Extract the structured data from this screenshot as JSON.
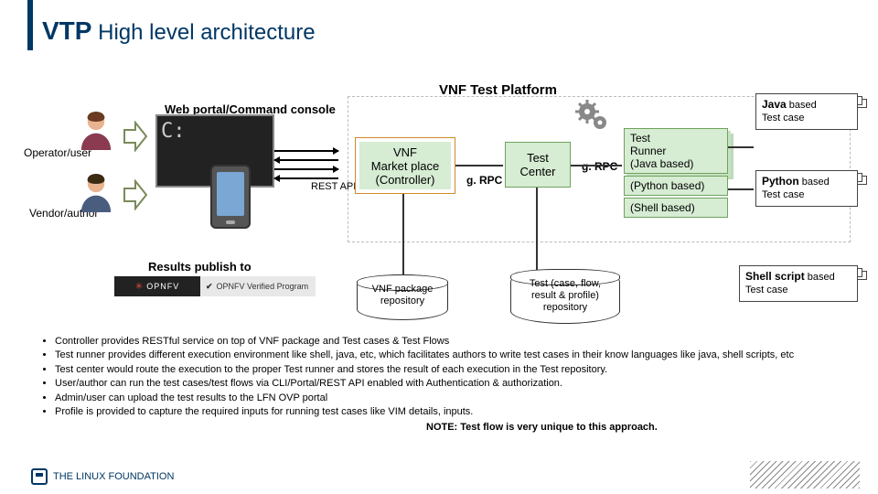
{
  "title": {
    "vtp": "VTP",
    "rest": " High level architecture"
  },
  "labels": {
    "platform": "VNF Test Platform",
    "web_portal": "Web portal/Command console",
    "operator": "Operator/user",
    "vendor": "Vendor/author",
    "rest_api": "REST API",
    "grpc": "g. RPC",
    "results": "Results publish to",
    "opnfv_left": "OPNFV",
    "opnfv_right": "OPNFV Verified Program",
    "note": "NOTE: Test flow is very unique to this approach.",
    "footer": "THE LINUX FOUNDATION",
    "terminal": "C:"
  },
  "boxes": {
    "vnf": {
      "l1": "VNF",
      "l2": "Market place",
      "l3": "(Controller)"
    },
    "test_center": {
      "l1": "Test",
      "l2": "Center"
    },
    "runner": {
      "l1": "Test",
      "l2": "Runner",
      "l3": "(Java based)",
      "l4": "(Python based)",
      "l5": "(Shell based)"
    }
  },
  "cases": {
    "java": {
      "b": "Java",
      "tail": " based",
      "sub": "Test case"
    },
    "python": {
      "b": "Python",
      "tail": " based",
      "sub": "Test case"
    },
    "shell": {
      "b": "Shell script",
      "tail": " based",
      "sub": "Test case"
    }
  },
  "cylinders": {
    "pkg": "VNF package\nrepository",
    "test": "Test (case, flow,\nresult & profile)\nrepository"
  },
  "bullets": [
    "Controller provides RESTful service  on top of VNF package and Test cases & Test Flows",
    "Test runner provides different execution environment like shell, java, etc, which facilitates authors to write test cases  in their know languages like java, shell scripts, etc",
    "Test center would route the execution to the proper Test runner and stores the result of each execution in the Test repository.",
    "User/author can run the test cases/test flows via CLI/Portal/REST API enabled with Authentication & authorization.",
    "Admin/user can upload the test results to the LFN OVP portal",
    "Profile is provided to capture the required inputs for running test cases like VIM details, inputs."
  ],
  "colors": {
    "accent": "#003764",
    "box_green": "#d6ecd3",
    "box_border_green": "#6fa35e",
    "box_border_orange": "#d08a2a"
  }
}
